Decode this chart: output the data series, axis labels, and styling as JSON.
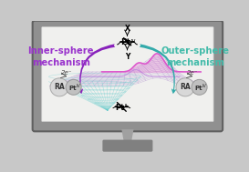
{
  "bg_color": "#c8c8c8",
  "screen_bg": "#f0f0ee",
  "monitor_frame_color": "#909090",
  "monitor_frame_dark": "#606060",
  "monitor_inner_border": "#b0b0b0",
  "stand_neck_color": "#a0a0a0",
  "stand_base_color": "#808080",
  "inner_sphere_color": "#9933CC",
  "outer_sphere_color": "#44BBAA",
  "arrow_inner_color": "#8822BB",
  "arrow_outer_color": "#33AAAA",
  "wave_pink": "#DD55CC",
  "wave_pink2": "#CC44BB",
  "mesh_purple": "#AA88CC",
  "mesh_cyan": "#66CCCC",
  "mesh_purple_alpha": 0.4,
  "mesh_cyan_alpha": 0.45,
  "ra_fill": "#d8d8d8",
  "ra_edge": "#aaaaaa",
  "pt_fill": "#c0c0c0",
  "pt_edge": "#999999",
  "title_inner": "Inner-sphere\nmechanism",
  "title_outer": "Outer-sphere\nmechanism",
  "label_2e": "2e⁻",
  "axis_x": "X",
  "axis_y": "Y"
}
